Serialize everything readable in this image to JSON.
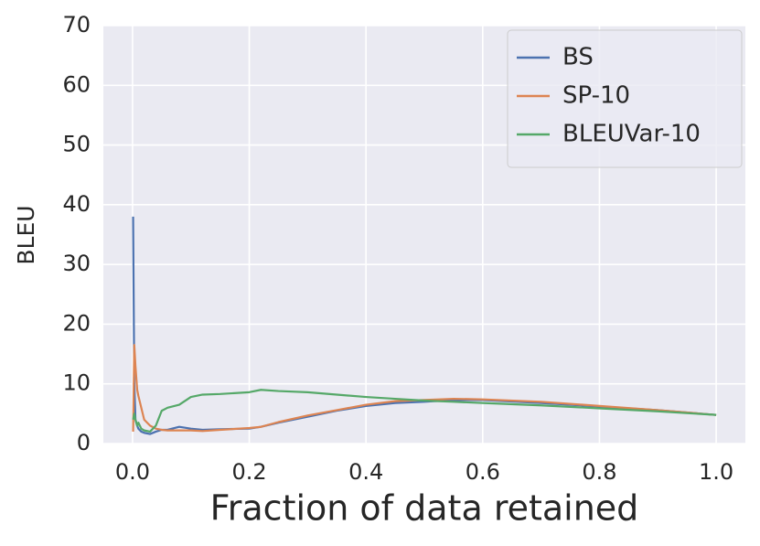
{
  "chart_data": {
    "type": "line",
    "x_label": "Fraction of data retained",
    "y_label": "BLEU",
    "x": [
      0.001,
      0.003,
      0.005,
      0.008,
      0.01,
      0.015,
      0.02,
      0.03,
      0.04,
      0.05,
      0.06,
      0.08,
      0.1,
      0.12,
      0.15,
      0.2,
      0.22,
      0.25,
      0.3,
      0.35,
      0.4,
      0.45,
      0.5,
      0.55,
      0.6,
      0.7,
      0.8,
      0.9,
      1.0
    ],
    "series": [
      {
        "name": "BS",
        "color": "#4c72b0",
        "values": [
          38,
          10,
          4,
          3,
          2.5,
          2,
          1.8,
          1.6,
          2,
          2.3,
          2.3,
          2.8,
          2.5,
          2.3,
          2.4,
          2.5,
          2.8,
          3.5,
          4.5,
          5.5,
          6.3,
          6.8,
          7.0,
          7.3,
          7.3,
          6.8,
          6.2,
          5.6,
          4.8
        ]
      },
      {
        "name": "SP-10",
        "color": "#dd8452",
        "values": [
          2,
          16.5,
          13,
          9,
          8,
          6,
          4,
          3,
          2.5,
          2.3,
          2.2,
          2.2,
          2.2,
          2.1,
          2.3,
          2.6,
          2.8,
          3.6,
          4.7,
          5.6,
          6.5,
          7.1,
          7.3,
          7.5,
          7.4,
          7.0,
          6.3,
          5.6,
          4.8
        ]
      },
      {
        "name": "BLEUVar-10",
        "color": "#55a868",
        "values": [
          4,
          5,
          4,
          3,
          3.5,
          2.5,
          2.2,
          2.0,
          3,
          5.5,
          6,
          6.5,
          7.8,
          8.2,
          8.3,
          8.6,
          9.0,
          8.8,
          8.6,
          8.2,
          7.8,
          7.5,
          7.2,
          7.0,
          6.8,
          6.4,
          5.9,
          5.4,
          4.8
        ]
      }
    ],
    "xlim": [
      -0.05,
      1.05
    ],
    "ylim": [
      0,
      70
    ],
    "xticks": [
      {
        "value": 0,
        "label": "0.0"
      },
      0.2,
      0.4,
      0.6,
      0.8,
      {
        "value": 1,
        "label": "1.0"
      }
    ],
    "yticks": [
      0,
      10,
      20,
      30,
      40,
      50,
      60,
      70
    ],
    "grid": true,
    "legend": "upper right"
  }
}
